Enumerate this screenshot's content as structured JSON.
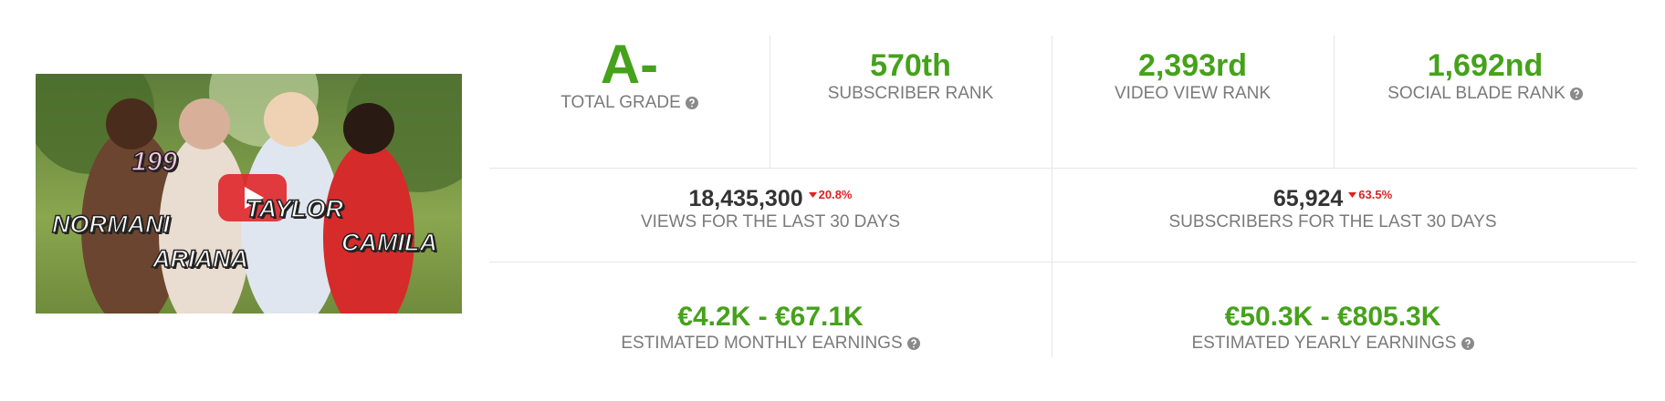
{
  "thumbnail": {
    "labels": [
      "NORMANI",
      "ARIANA",
      "TAYLOR",
      "CAMILA"
    ],
    "jersey": "199"
  },
  "ranks": [
    {
      "value": "A-",
      "label": "TOTAL GRADE"
    },
    {
      "value": "570th",
      "label": "SUBSCRIBER RANK"
    },
    {
      "value": "2,393rd",
      "label": "VIDEO VIEW RANK"
    },
    {
      "value": "1,692nd",
      "label": "SOCIAL BLADE RANK"
    }
  ],
  "stats": [
    {
      "value": "18,435,300",
      "change": "20.8%",
      "label": "VIEWS FOR THE LAST 30 DAYS"
    },
    {
      "value": "65,924",
      "change": "63.5%",
      "label": "SUBSCRIBERS FOR THE LAST 30 DAYS"
    }
  ],
  "earnings": [
    {
      "value": "€4.2K - €67.1K",
      "label": "ESTIMATED MONTHLY EARNINGS"
    },
    {
      "value": "€50.3K - €805.3K",
      "label": "ESTIMATED YEARLY EARNINGS"
    }
  ]
}
